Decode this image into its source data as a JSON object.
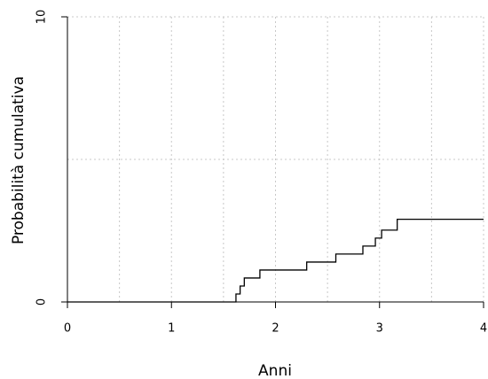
{
  "chart_data": {
    "type": "step",
    "xlabel": "Anni",
    "ylabel": "Probabilità cumulativa",
    "x": [
      0,
      1.62,
      1.66,
      1.7,
      1.85,
      2.3,
      2.58,
      2.84,
      2.96,
      3.02,
      3.17,
      4
    ],
    "values": [
      0,
      0.28,
      0.56,
      0.84,
      1.12,
      1.4,
      1.68,
      1.96,
      2.24,
      2.52,
      2.9,
      2.9
    ],
    "color": "#000000",
    "xlim": [
      0,
      4
    ],
    "xticks": [
      0,
      1,
      2,
      3,
      4
    ],
    "ylim": [
      0,
      10
    ],
    "yticks": [
      0,
      10
    ],
    "grid": true,
    "minor_grid": true
  }
}
